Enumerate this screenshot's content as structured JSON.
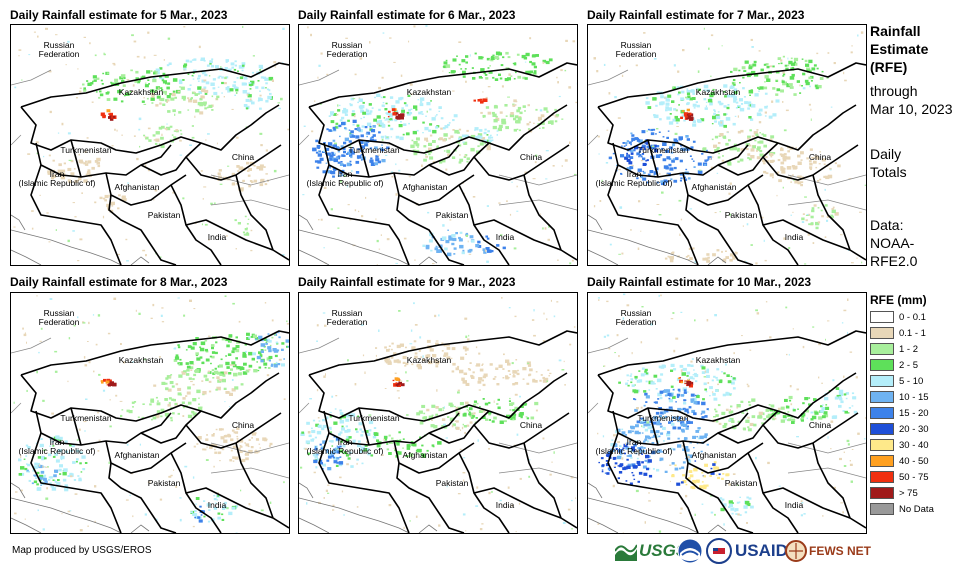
{
  "panels": [
    {
      "title": "Daily Rainfall estimate for 5 Mar., 2023",
      "variant": 0
    },
    {
      "title": "Daily Rainfall estimate for 6 Mar., 2023",
      "variant": 1
    },
    {
      "title": "Daily Rainfall estimate for 7 Mar., 2023",
      "variant": 2
    },
    {
      "title": "Daily Rainfall estimate for 8 Mar., 2023",
      "variant": 3
    },
    {
      "title": "Daily Rainfall estimate for 9 Mar., 2023",
      "variant": 4
    },
    {
      "title": "Daily Rainfall estimate for 10 Mar., 2023",
      "variant": 5
    }
  ],
  "map_labels": {
    "russia": "Russian\nFederation",
    "kazakhstan": "Kazakhstan",
    "turkmenistan": "Turkmenistan",
    "china": "China",
    "iran": "Iran\n(Islamic Republic of)",
    "afghanistan": "Afghanistan",
    "pakistan": "Pakistan",
    "india": "India"
  },
  "sidebar": {
    "title": "Rainfall\nEstimate\n(RFE)",
    "through": "through\nMar 10, 2023",
    "totals": "Daily\nTotals",
    "data": "Data:\nNOAA-\nRFE2.0"
  },
  "legend": {
    "title": "RFE (mm)",
    "items": [
      {
        "label": "0 - 0.1",
        "color": "#ffffff"
      },
      {
        "label": "0.1 - 1",
        "color": "#e8d7b8"
      },
      {
        "label": "1 - 2",
        "color": "#a8ef9c"
      },
      {
        "label": "2 - 5",
        "color": "#5ee05a"
      },
      {
        "label": "5 - 10",
        "color": "#b4eefa"
      },
      {
        "label": "10 - 15",
        "color": "#6fb3f2"
      },
      {
        "label": "15 - 20",
        "color": "#3d82ea"
      },
      {
        "label": "20 - 30",
        "color": "#1e4fd8"
      },
      {
        "label": "30 - 40",
        "color": "#fee98a"
      },
      {
        "label": "40 - 50",
        "color": "#ffa020"
      },
      {
        "label": "50 - 75",
        "color": "#f03010"
      },
      {
        "label": "> 75",
        "color": "#a01a1a"
      },
      {
        "label": "No Data",
        "color": "#999999"
      }
    ]
  },
  "credit": "Map produced by USGS/EROS",
  "logos": {
    "usgs": "USGS",
    "noaa": "NOAA",
    "usaid": "USAID",
    "fewsnet": "FEWS NET"
  }
}
